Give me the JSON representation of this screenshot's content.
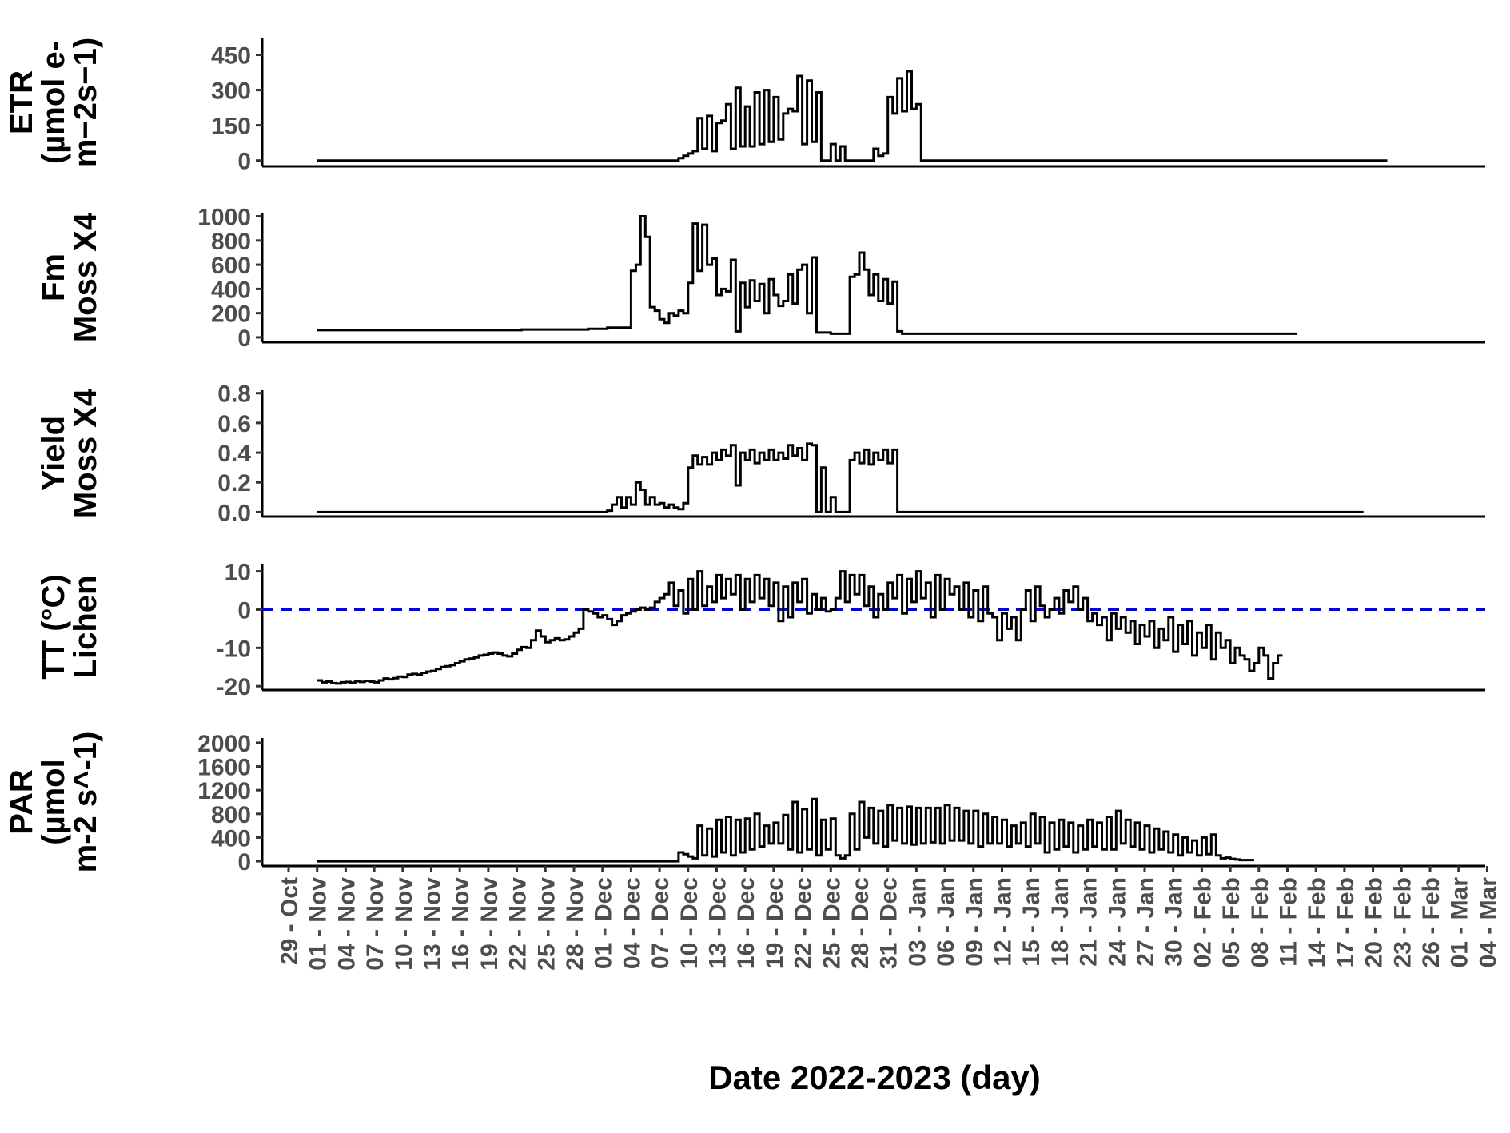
{
  "chart_data": {
    "type": "line",
    "xlabel": "Date 2022-2023 (day)",
    "x_ticks": [
      "29 - Oct",
      "01 - Nov",
      "04 - Nov",
      "07 - Nov",
      "10 - Nov",
      "13 - Nov",
      "16 - Nov",
      "19 - Nov",
      "22 - Nov",
      "25 - Nov",
      "28 - Nov",
      "01 - Dec",
      "04 - Dec",
      "07 - Dec",
      "10 - Dec",
      "13 - Dec",
      "16 - Dec",
      "19 - Dec",
      "22 - Dec",
      "25 - Dec",
      "28 - Dec",
      "31 - Dec",
      "03 - Jan",
      "06 - Jan",
      "09 - Jan",
      "12 - Jan",
      "15 - Jan",
      "18 - Jan",
      "21 - Jan",
      "24 - Jan",
      "27 - Jan",
      "30 - Jan",
      "02 - Feb",
      "05 - Feb",
      "08 - Feb",
      "11 - Feb",
      "14 - Feb",
      "17 - Feb",
      "20 - Feb",
      "23 - Feb",
      "26 - Feb",
      "01 - Mar",
      "04 - Mar"
    ],
    "panels": [
      {
        "ylabel": [
          "ETR",
          "(µmol e-",
          "m−2s−1)"
        ],
        "yticks": [
          "0",
          "150",
          "300",
          "450"
        ],
        "ylim": [
          -25,
          520
        ],
        "step_days": 0.5,
        "x_start_day": 3,
        "values": [
          0,
          0,
          0,
          0,
          0,
          0,
          0,
          0,
          0,
          0,
          0,
          0,
          0,
          0,
          0,
          0,
          0,
          0,
          0,
          0,
          0,
          0,
          0,
          0,
          0,
          0,
          0,
          0,
          0,
          0,
          0,
          0,
          0,
          0,
          0,
          0,
          0,
          0,
          0,
          0,
          0,
          0,
          0,
          0,
          0,
          0,
          0,
          0,
          0,
          0,
          0,
          0,
          0,
          0,
          0,
          0,
          0,
          0,
          0,
          0,
          0,
          0,
          0,
          0,
          0,
          0,
          0,
          0,
          0,
          0,
          0,
          0,
          0,
          0,
          0,
          0,
          10,
          20,
          30,
          40,
          180,
          50,
          190,
          40,
          160,
          170,
          240,
          50,
          310,
          60,
          230,
          60,
          290,
          70,
          300,
          80,
          270,
          90,
          200,
          220,
          210,
          360,
          70,
          340,
          80,
          290,
          0,
          0,
          70,
          0,
          60,
          0,
          0,
          0,
          0,
          0,
          0,
          50,
          20,
          30,
          270,
          200,
          350,
          210,
          380,
          220,
          240,
          0,
          0,
          0,
          0,
          0,
          0,
          0,
          0,
          0,
          0,
          0,
          0,
          0,
          0,
          0,
          0,
          0,
          0,
          0,
          0,
          0,
          0,
          0,
          0,
          0,
          0,
          0,
          0,
          0,
          0,
          0,
          0,
          0,
          0,
          0,
          0,
          0,
          0,
          0,
          0,
          0,
          0,
          0,
          0,
          0,
          0,
          0,
          0,
          0,
          0,
          0,
          0,
          0,
          0,
          0,
          0,
          0,
          0,
          0,
          0,
          0,
          0,
          0,
          0,
          0,
          0,
          0,
          0,
          0,
          0,
          0,
          0,
          0,
          0,
          0,
          0,
          0,
          0,
          0,
          0,
          0,
          0,
          0,
          0,
          0,
          0,
          0,
          0,
          0,
          0,
          0,
          0,
          0,
          0,
          0,
          0,
          0,
          0
        ]
      },
      {
        "ylabel": [
          "Fm",
          "Moss X4"
        ],
        "yticks": [
          "0",
          "200",
          "400",
          "600",
          "800",
          "1000"
        ],
        "ylim": [
          -40,
          1030
        ],
        "step_days": 0.5,
        "x_start_day": 3,
        "values": [
          60,
          60,
          60,
          60,
          60,
          60,
          60,
          60,
          60,
          60,
          60,
          60,
          60,
          60,
          60,
          60,
          60,
          60,
          60,
          60,
          60,
          60,
          60,
          60,
          60,
          60,
          60,
          60,
          60,
          60,
          60,
          60,
          60,
          60,
          60,
          60,
          60,
          60,
          60,
          60,
          60,
          60,
          60,
          65,
          65,
          65,
          65,
          65,
          65,
          65,
          65,
          65,
          65,
          65,
          65,
          65,
          65,
          70,
          70,
          70,
          70,
          80,
          80,
          80,
          80,
          80,
          550,
          600,
          1000,
          830,
          250,
          220,
          150,
          120,
          200,
          180,
          220,
          200,
          450,
          940,
          550,
          930,
          600,
          650,
          350,
          400,
          380,
          640,
          50,
          450,
          250,
          470,
          300,
          440,
          200,
          480,
          350,
          260,
          300,
          520,
          280,
          560,
          600,
          200,
          660,
          40,
          40,
          40,
          30,
          30,
          30,
          30,
          500,
          520,
          700,
          560,
          350,
          520,
          300,
          480,
          280,
          460,
          50,
          30,
          30,
          30,
          30,
          30,
          30,
          30,
          30,
          30,
          30,
          30,
          30,
          30,
          30,
          30,
          30,
          30,
          30,
          30,
          30,
          30,
          30,
          30,
          30,
          30,
          30,
          30,
          30,
          30,
          30,
          30,
          30,
          30,
          30,
          30,
          30,
          30,
          30,
          30,
          30,
          30,
          30,
          30,
          30,
          30,
          30,
          30,
          30,
          30,
          30,
          30,
          30,
          30,
          30,
          30,
          30,
          30,
          30,
          30,
          30,
          30,
          30,
          30,
          30,
          30,
          30,
          30,
          30,
          30,
          30,
          30,
          30,
          30,
          30,
          30,
          30,
          30,
          30,
          30,
          30,
          30,
          30,
          30
        ]
      },
      {
        "ylabel": [
          "Yield",
          "Moss X4"
        ],
        "yticks": [
          "0.0",
          "0.2",
          "0.4",
          "0.6",
          "0.8"
        ],
        "ylim": [
          -0.03,
          0.82
        ],
        "step_days": 0.5,
        "x_start_day": 3,
        "values": [
          0,
          0,
          0,
          0,
          0,
          0,
          0,
          0,
          0,
          0,
          0,
          0,
          0,
          0,
          0,
          0,
          0,
          0,
          0,
          0,
          0,
          0,
          0,
          0,
          0,
          0,
          0,
          0,
          0,
          0,
          0,
          0,
          0,
          0,
          0,
          0,
          0,
          0,
          0,
          0,
          0,
          0,
          0,
          0,
          0,
          0,
          0,
          0,
          0,
          0,
          0,
          0,
          0,
          0,
          0,
          0,
          0,
          0,
          0,
          0,
          0,
          0.01,
          0.05,
          0.1,
          0.03,
          0.1,
          0.05,
          0.2,
          0.15,
          0.05,
          0.1,
          0.05,
          0.06,
          0.03,
          0.05,
          0.03,
          0.02,
          0.06,
          0.3,
          0.38,
          0.32,
          0.37,
          0.32,
          0.4,
          0.35,
          0.42,
          0.38,
          0.45,
          0.18,
          0.4,
          0.35,
          0.42,
          0.33,
          0.4,
          0.35,
          0.42,
          0.35,
          0.4,
          0.36,
          0.45,
          0.38,
          0.43,
          0.35,
          0.46,
          0.45,
          0,
          0.3,
          0,
          0.1,
          0,
          0,
          0,
          0.35,
          0.4,
          0.33,
          0.42,
          0.32,
          0.4,
          0.35,
          0.42,
          0.33,
          0.42,
          0,
          0,
          0,
          0,
          0,
          0,
          0,
          0,
          0,
          0,
          0,
          0,
          0,
          0,
          0,
          0,
          0,
          0,
          0,
          0,
          0,
          0,
          0,
          0,
          0,
          0,
          0,
          0,
          0,
          0,
          0,
          0,
          0,
          0,
          0,
          0,
          0,
          0,
          0,
          0,
          0,
          0,
          0,
          0,
          0,
          0,
          0,
          0,
          0,
          0,
          0,
          0,
          0,
          0,
          0,
          0,
          0,
          0,
          0,
          0,
          0,
          0,
          0,
          0,
          0,
          0,
          0,
          0,
          0,
          0,
          0,
          0,
          0,
          0,
          0,
          0,
          0,
          0,
          0,
          0,
          0,
          0,
          0,
          0,
          0,
          0,
          0,
          0,
          0,
          0,
          0,
          0,
          0,
          0,
          0,
          0,
          0,
          0
        ]
      },
      {
        "ylabel": [
          "TT (°C)",
          "Lichen"
        ],
        "yticks": [
          "-20",
          "-10",
          "0",
          "10"
        ],
        "ylim": [
          -21,
          12
        ],
        "reference_line": {
          "y": 0,
          "color": "#0000ff",
          "style": "dashed"
        },
        "step_days": 0.5,
        "x_start_day": 3,
        "values": [
          -18.5,
          -19,
          -18.8,
          -19.2,
          -19.3,
          -19,
          -18.9,
          -19.1,
          -18.7,
          -18.9,
          -18.6,
          -18.8,
          -19,
          -18.5,
          -18,
          -18.2,
          -17.9,
          -17.5,
          -17.6,
          -17,
          -16.8,
          -17,
          -16.5,
          -16.2,
          -16,
          -15.5,
          -15,
          -14.8,
          -14.5,
          -14,
          -13.5,
          -13,
          -12.8,
          -12.5,
          -12,
          -11.8,
          -11.5,
          -11.2,
          -11.5,
          -12,
          -12.2,
          -11.5,
          -10.5,
          -9.8,
          -10,
          -8,
          -5.5,
          -7,
          -8.5,
          -8,
          -7.5,
          -8,
          -7.8,
          -7,
          -6,
          -5,
          0,
          -0.5,
          -1,
          -2,
          -1.5,
          -2.5,
          -4,
          -3,
          -1.5,
          -1,
          -0.5,
          0,
          0.5,
          0,
          0.5,
          2,
          3,
          4,
          7,
          1,
          5,
          -1,
          8,
          0,
          10,
          1,
          6,
          2,
          9,
          3,
          8,
          4,
          9,
          0,
          8,
          2,
          9,
          3,
          8,
          1,
          7,
          -3,
          6,
          -2,
          7,
          2,
          8,
          -1,
          4,
          0,
          3,
          -0.5,
          0,
          3,
          10,
          2,
          9,
          4,
          9,
          1,
          6,
          -2,
          4,
          0,
          7,
          3,
          9,
          -1,
          8,
          2,
          10,
          3,
          7,
          -2,
          9,
          0,
          8,
          4,
          6,
          0,
          7,
          -2,
          5,
          -3,
          6,
          -1,
          -2,
          -8,
          -1,
          -5,
          -2,
          -8,
          0,
          5,
          -3,
          6,
          1,
          -2,
          0,
          3,
          -1,
          5,
          2,
          6,
          0,
          3,
          -3,
          -1,
          -4,
          -2,
          -8,
          -1,
          -5,
          -2,
          -6,
          -3,
          -9,
          -4,
          -7,
          -3,
          -10,
          -5,
          -8,
          -2,
          -11,
          -4,
          -9,
          -3,
          -12,
          -6,
          -10,
          -4,
          -13,
          -6,
          -10,
          -8,
          -14,
          -10,
          -12,
          -13,
          -16,
          -14,
          -10,
          -12,
          -18,
          -14,
          -12
        ]
      },
      {
        "ylabel": [
          "PAR",
          "(µmol",
          "m-2 s^-1)"
        ],
        "yticks": [
          "0",
          "400",
          "800",
          "1200",
          "1600",
          "2000"
        ],
        "ylim": [
          -80,
          2080
        ],
        "step_days": 0.5,
        "x_start_day": 3,
        "values": [
          0,
          0,
          0,
          0,
          0,
          0,
          0,
          0,
          0,
          0,
          0,
          0,
          0,
          0,
          0,
          0,
          0,
          0,
          0,
          0,
          0,
          0,
          0,
          0,
          0,
          0,
          0,
          0,
          0,
          0,
          0,
          0,
          0,
          0,
          0,
          0,
          0,
          0,
          0,
          0,
          0,
          0,
          0,
          0,
          0,
          0,
          0,
          0,
          0,
          0,
          0,
          0,
          0,
          0,
          0,
          0,
          0,
          0,
          0,
          0,
          0,
          0,
          0,
          0,
          0,
          0,
          0,
          0,
          0,
          0,
          0,
          0,
          0,
          0,
          0,
          0,
          150,
          120,
          80,
          50,
          600,
          100,
          550,
          80,
          700,
          150,
          750,
          100,
          700,
          150,
          720,
          200,
          800,
          250,
          600,
          300,
          650,
          300,
          780,
          200,
          1000,
          150,
          880,
          200,
          1050,
          100,
          700,
          200,
          720,
          100,
          50,
          100,
          800,
          200,
          1000,
          400,
          900,
          300,
          850,
          250,
          950,
          350,
          900,
          300,
          920,
          280,
          900,
          300,
          900,
          320,
          900,
          300,
          950,
          350,
          900,
          350,
          850,
          300,
          850,
          250,
          800,
          300,
          750,
          300,
          700,
          250,
          600,
          300,
          650,
          250,
          800,
          300,
          750,
          150,
          650,
          200,
          700,
          250,
          650,
          150,
          600,
          200,
          700,
          250,
          650,
          200,
          750,
          200,
          850,
          300,
          700,
          250,
          650,
          200,
          600,
          150,
          550,
          200,
          500,
          150,
          450,
          100,
          400,
          150,
          350,
          100,
          400,
          120,
          450,
          100,
          50,
          60,
          40,
          30,
          20,
          20,
          20
        ]
      }
    ]
  }
}
